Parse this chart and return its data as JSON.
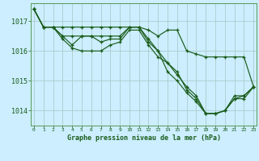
{
  "background_color": "#cceeff",
  "grid_color": "#aacccc",
  "line_color": "#1a5c1a",
  "title": "Graphe pression niveau de la mer (hPa)",
  "hours": [
    0,
    1,
    2,
    3,
    4,
    5,
    6,
    7,
    8,
    9,
    10,
    11,
    12,
    13,
    14,
    15,
    16,
    17,
    18,
    19,
    20,
    21,
    22,
    23
  ],
  "ylim": [
    1013.5,
    1017.6
  ],
  "yticks": [
    1014,
    1015,
    1016,
    1017
  ],
  "series": [
    [
      1017.4,
      1016.8,
      1016.8,
      1016.4,
      1016.1,
      1016.0,
      1016.0,
      1016.0,
      1016.2,
      1016.3,
      1016.7,
      1016.7,
      1016.2,
      1015.8,
      1015.6,
      1015.3,
      1014.7,
      1014.4,
      1013.9,
      1013.9,
      1014.0,
      1014.4,
      1014.5,
      1014.8
    ],
    [
      1017.4,
      1016.8,
      1016.8,
      1016.5,
      1016.2,
      1016.5,
      1016.5,
      1016.3,
      1016.4,
      1016.4,
      1016.8,
      1016.8,
      1016.3,
      1016.0,
      1015.3,
      1015.0,
      1014.6,
      1014.3,
      1013.9,
      1013.9,
      1014.0,
      1014.4,
      1014.4,
      1014.8
    ],
    [
      1017.4,
      1016.8,
      1016.8,
      1016.5,
      1016.5,
      1016.5,
      1016.5,
      1016.5,
      1016.5,
      1016.5,
      1016.8,
      1016.8,
      1016.4,
      1016.0,
      1015.6,
      1015.2,
      1014.8,
      1014.5,
      1013.9,
      1013.9,
      1014.0,
      1014.5,
      1014.5,
      1014.8
    ],
    [
      1017.4,
      1016.8,
      1016.8,
      1016.8,
      1016.8,
      1016.8,
      1016.8,
      1016.8,
      1016.8,
      1016.8,
      1016.8,
      1016.8,
      1016.7,
      1016.5,
      1016.7,
      1016.7,
      1016.0,
      1015.9,
      1015.8,
      1015.8,
      1015.8,
      1015.8,
      1015.8,
      1014.8
    ]
  ]
}
